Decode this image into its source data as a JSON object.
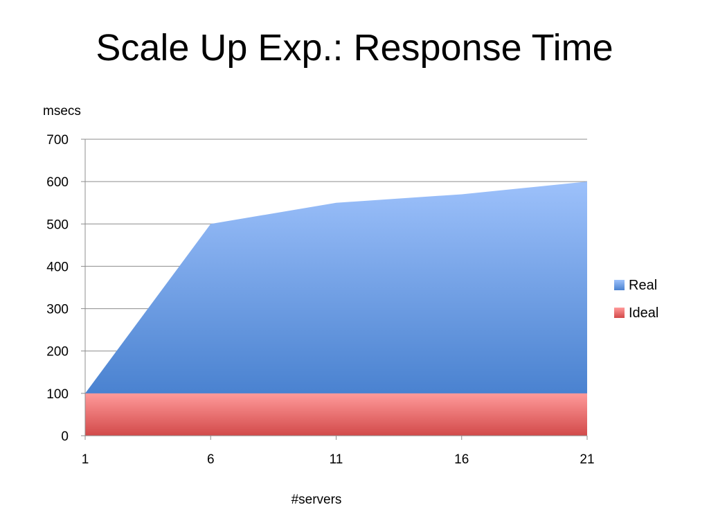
{
  "title": "Scale Up Exp.: Response Time",
  "chart_data": {
    "type": "area",
    "title": "Scale Up Exp.: Response Time",
    "xlabel": "#servers",
    "ylabel": "msecs",
    "x": [
      1,
      6,
      11,
      16,
      21
    ],
    "x_ticks": [
      "1",
      "6",
      "11",
      "16",
      "21"
    ],
    "y_ticks": [
      "0",
      "100",
      "200",
      "300",
      "400",
      "500",
      "600",
      "700"
    ],
    "ylim": [
      0,
      700
    ],
    "xlim": [
      1,
      21
    ],
    "grid": true,
    "legend_position": "right",
    "series": [
      {
        "name": "Real",
        "values": [
          100,
          500,
          550,
          570,
          600
        ],
        "color": "#6a9de8",
        "color_light": "#9dc1fb",
        "color_dark": "#4a82d0"
      },
      {
        "name": "Ideal",
        "values": [
          100,
          100,
          100,
          100,
          100
        ],
        "color": "#e66a6a",
        "color_light": "#ff9a9a",
        "color_dark": "#d24a4a"
      }
    ]
  }
}
